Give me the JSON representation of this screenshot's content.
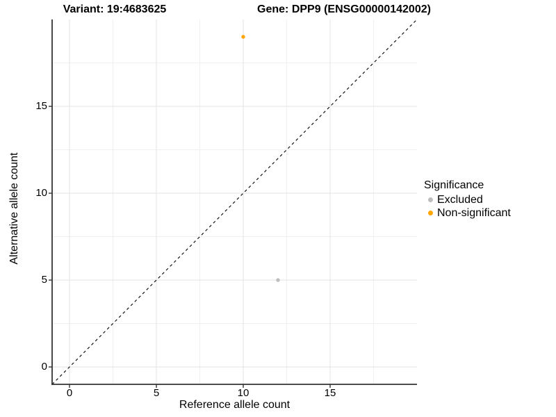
{
  "header": {
    "title_left": "Variant: 19:4683625",
    "title_right": "Gene: DPP9 (ENSG00000142002)"
  },
  "chart_data": {
    "type": "scatter",
    "xlabel": "Reference allele count",
    "ylabel": "Alternative allele count",
    "xlim": [
      -1,
      20
    ],
    "ylim": [
      -1,
      20
    ],
    "x_ticks": [
      0,
      5,
      10,
      15
    ],
    "x_tick_labels": [
      "0",
      "5",
      "10",
      "15"
    ],
    "y_ticks": [
      0,
      5,
      10,
      15
    ],
    "y_tick_labels": [
      "0",
      "5",
      "10",
      "15"
    ],
    "x_minor_ticks": [
      2.5,
      7.5,
      12.5,
      17.5
    ],
    "y_minor_ticks": [
      2.5,
      7.5,
      12.5,
      17.5
    ],
    "grid": true,
    "background": "#ffffff",
    "major_grid_color": "#e3e3e3",
    "minor_grid_color": "#f0f0f0",
    "axis_line_color": "#333333",
    "identity_line": {
      "slope": 1,
      "intercept": 0,
      "style": "dashed",
      "color": "#111111"
    },
    "legend": {
      "title": "Significance",
      "position": "right"
    },
    "series": [
      {
        "name": "Excluded",
        "color": "#BEBEBE",
        "points": [
          {
            "x": 12,
            "y": 5
          }
        ]
      },
      {
        "name": "Non-significant",
        "color": "#FFA500",
        "points": [
          {
            "x": 10,
            "y": 19
          }
        ]
      }
    ]
  }
}
